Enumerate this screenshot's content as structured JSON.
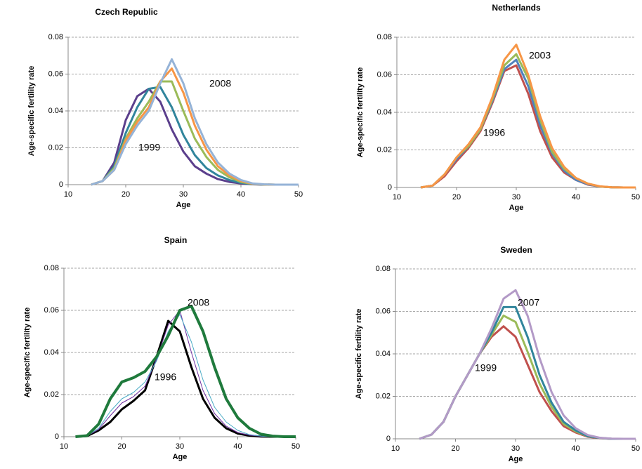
{
  "chart_data": [
    {
      "type": "line",
      "title": "Czech Republic",
      "x_label": "Age",
      "y_label": "Age-specific  fertility rate",
      "x": [
        14,
        16,
        18,
        20,
        22,
        24,
        26,
        28,
        30,
        32,
        34,
        36,
        38,
        40,
        42,
        44,
        46,
        48,
        50
      ],
      "xlim": [
        10,
        50
      ],
      "xticks": [
        10,
        20,
        30,
        40,
        50
      ],
      "ylim": [
        0,
        0.08
      ],
      "yticks": [
        0,
        0.02,
        0.04,
        0.06,
        0.08
      ],
      "grid": true,
      "series": [
        {
          "color": "#5b3f8c",
          "values": [
            0,
            0.002,
            0.012,
            0.035,
            0.048,
            0.052,
            0.045,
            0.03,
            0.018,
            0.01,
            0.006,
            0.003,
            0.0015,
            0.0007,
            0.0002,
            0,
            0,
            0,
            0
          ]
        },
        {
          "color": "#31859c",
          "values": [
            0,
            0.002,
            0.01,
            0.028,
            0.042,
            0.052,
            0.053,
            0.042,
            0.027,
            0.016,
            0.009,
            0.005,
            0.0025,
            0.001,
            0.0003,
            0,
            0,
            0,
            0
          ]
        },
        {
          "color": "#9bbb59",
          "values": [
            0,
            0.002,
            0.009,
            0.025,
            0.036,
            0.045,
            0.056,
            0.056,
            0.04,
            0.025,
            0.015,
            0.008,
            0.004,
            0.0015,
            0.0004,
            0.0001,
            0,
            0,
            0
          ]
        },
        {
          "color": "#f79646",
          "values": [
            0,
            0.002,
            0.008,
            0.024,
            0.034,
            0.042,
            0.056,
            0.063,
            0.05,
            0.032,
            0.019,
            0.01,
            0.005,
            0.002,
            0.0005,
            0.0001,
            0,
            0,
            0
          ]
        },
        {
          "color": "#95b3d7",
          "values": [
            0,
            0.002,
            0.008,
            0.022,
            0.032,
            0.04,
            0.055,
            0.068,
            0.055,
            0.036,
            0.022,
            0.012,
            0.006,
            0.0025,
            0.0007,
            0.0002,
            0,
            0,
            0
          ]
        }
      ],
      "annotations": [
        "2008",
        "1999"
      ]
    },
    {
      "type": "line",
      "title": "Netherlands",
      "x_label": "Age",
      "y_label": "Age-specific fertility rate",
      "x": [
        14,
        16,
        18,
        20,
        22,
        24,
        26,
        28,
        30,
        32,
        34,
        36,
        38,
        40,
        42,
        44,
        46,
        48,
        50
      ],
      "xlim": [
        10,
        50
      ],
      "xticks": [
        10,
        20,
        30,
        40,
        50
      ],
      "ylim": [
        0,
        0.08
      ],
      "yticks": [
        0,
        0.02,
        0.04,
        0.06,
        0.08
      ],
      "grid": true,
      "series": [
        {
          "color": "#c0504d",
          "values": [
            0,
            0.001,
            0.006,
            0.014,
            0.021,
            0.03,
            0.045,
            0.062,
            0.065,
            0.05,
            0.03,
            0.016,
            0.008,
            0.004,
            0.0015,
            0.0005,
            0.0001,
            0,
            0
          ]
        },
        {
          "color": "#4f81bd",
          "values": [
            0,
            0.001,
            0.007,
            0.015,
            0.022,
            0.031,
            0.046,
            0.063,
            0.068,
            0.054,
            0.033,
            0.018,
            0.009,
            0.004,
            0.0017,
            0.0005,
            0.0001,
            0,
            0
          ]
        },
        {
          "color": "#9bbb59",
          "values": [
            0,
            0.001,
            0.007,
            0.016,
            0.022,
            0.031,
            0.047,
            0.065,
            0.071,
            0.058,
            0.036,
            0.019,
            0.01,
            0.005,
            0.002,
            0.0005,
            0.0001,
            0,
            0
          ]
        },
        {
          "color": "#f79646",
          "values": [
            0,
            0.001,
            0.007,
            0.016,
            0.023,
            0.032,
            0.048,
            0.068,
            0.076,
            0.06,
            0.038,
            0.021,
            0.011,
            0.005,
            0.002,
            0.0006,
            0.0001,
            0,
            0
          ]
        }
      ],
      "annotations": [
        "2003",
        "1996"
      ]
    },
    {
      "type": "line",
      "title": "Spain",
      "x_label": "Age",
      "y_label": "Age-specific fertility rate",
      "x": [
        12,
        14,
        16,
        18,
        20,
        22,
        24,
        26,
        28,
        30,
        32,
        34,
        36,
        38,
        40,
        42,
        44,
        46,
        48,
        50
      ],
      "xlim": [
        10,
        50
      ],
      "xticks": [
        10,
        20,
        30,
        40,
        50
      ],
      "ylim": [
        0,
        0.08
      ],
      "yticks": [
        0,
        0.02,
        0.04,
        0.06,
        0.08
      ],
      "grid": true,
      "series": [
        {
          "color": "#000000",
          "width": 3,
          "values": [
            0,
            0.0003,
            0.003,
            0.007,
            0.013,
            0.017,
            0.022,
            0.038,
            0.055,
            0.05,
            0.033,
            0.018,
            0.009,
            0.004,
            0.0015,
            0.0005,
            0.0001,
            0,
            0,
            0
          ]
        },
        {
          "color": "#7030a0",
          "width": 1,
          "values": [
            0,
            0.0003,
            0.0035,
            0.01,
            0.016,
            0.019,
            0.024,
            0.037,
            0.053,
            0.06,
            0.04,
            0.022,
            0.011,
            0.005,
            0.002,
            0.0007,
            0.0002,
            0,
            0,
            0
          ]
        },
        {
          "color": "#4bacc6",
          "width": 1,
          "values": [
            0,
            0.0004,
            0.004,
            0.012,
            0.018,
            0.021,
            0.026,
            0.036,
            0.05,
            0.058,
            0.045,
            0.027,
            0.014,
            0.007,
            0.003,
            0.001,
            0.0003,
            0,
            0,
            0
          ]
        },
        {
          "color": "#1f7a3c",
          "width": 4,
          "values": [
            0,
            0.0005,
            0.006,
            0.018,
            0.026,
            0.028,
            0.031,
            0.038,
            0.048,
            0.06,
            0.062,
            0.05,
            0.033,
            0.018,
            0.009,
            0.004,
            0.0012,
            0.0003,
            0,
            0
          ]
        }
      ],
      "annotations": [
        "2008",
        "1996"
      ]
    },
    {
      "type": "line",
      "title": "Sweden",
      "x_label": "Age",
      "y_label": "Age-specific fertility rate",
      "x": [
        14,
        16,
        18,
        20,
        22,
        24,
        26,
        28,
        30,
        32,
        34,
        36,
        38,
        40,
        42,
        44,
        46,
        48,
        50
      ],
      "xlim": [
        10,
        50
      ],
      "xticks": [
        10,
        20,
        30,
        40,
        50
      ],
      "ylim": [
        0,
        0.08
      ],
      "yticks": [
        0,
        0.02,
        0.04,
        0.06,
        0.08
      ],
      "grid": true,
      "series": [
        {
          "color": "#c0504d",
          "values": [
            0,
            0.002,
            0.008,
            0.02,
            0.03,
            0.04,
            0.048,
            0.053,
            0.048,
            0.035,
            0.022,
            0.013,
            0.006,
            0.003,
            0.001,
            0.0003,
            0,
            0,
            0
          ]
        },
        {
          "color": "#9bbb59",
          "values": [
            0,
            0.002,
            0.008,
            0.02,
            0.03,
            0.04,
            0.049,
            0.058,
            0.055,
            0.041,
            0.026,
            0.015,
            0.007,
            0.0035,
            0.0012,
            0.0004,
            0,
            0,
            0
          ]
        },
        {
          "color": "#31859c",
          "values": [
            0,
            0.002,
            0.008,
            0.02,
            0.03,
            0.04,
            0.05,
            0.062,
            0.062,
            0.048,
            0.03,
            0.017,
            0.008,
            0.004,
            0.0013,
            0.0004,
            0,
            0,
            0
          ]
        },
        {
          "color": "#b39ac7",
          "values": [
            0,
            0.002,
            0.008,
            0.02,
            0.03,
            0.04,
            0.052,
            0.066,
            0.07,
            0.058,
            0.038,
            0.022,
            0.011,
            0.005,
            0.0018,
            0.0005,
            0.0001,
            0,
            0
          ]
        }
      ],
      "annotations": [
        "2007",
        "1999"
      ]
    }
  ]
}
